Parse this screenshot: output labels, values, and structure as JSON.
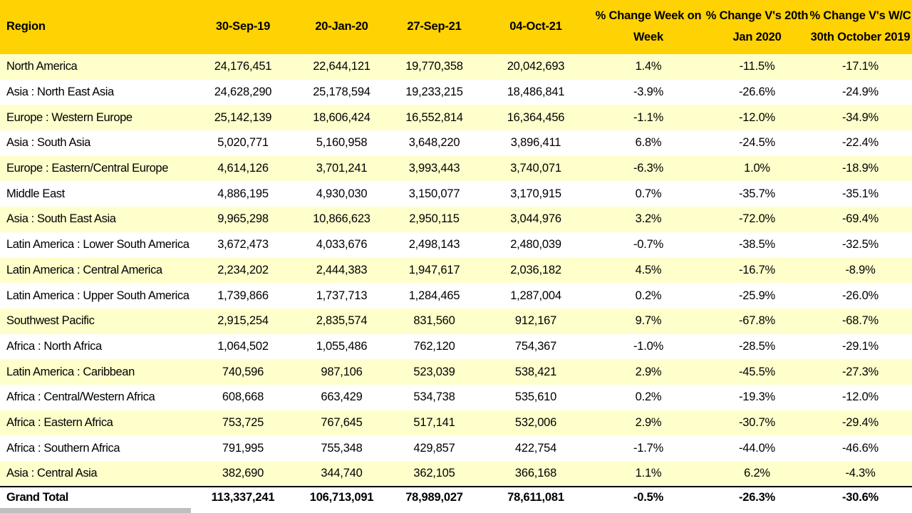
{
  "colors": {
    "header_bg": "#FFD203",
    "stripe_row_bg": "#FFFFCC",
    "plain_row_bg": "#FFFFFF",
    "text": "#000000",
    "grand_total_border": "#000000",
    "edge_shadow": "#BFBFBF"
  },
  "table": {
    "columns": [
      {
        "label": "Region"
      },
      {
        "label": "30-Sep-19"
      },
      {
        "label": "20-Jan-20"
      },
      {
        "label": "27-Sep-21"
      },
      {
        "label": "04-Oct-21"
      },
      {
        "label": "% Change Week on Week",
        "line1": "% Change Week on",
        "line2": "Week"
      },
      {
        "label": "% Change V's 20th Jan 2020",
        "line1": "% Change V's 20th",
        "line2": "Jan 2020"
      },
      {
        "label": "% Change V's W/C 30th October 2019",
        "line1": "% Change V's W/C",
        "line2": "30th October 2019"
      }
    ],
    "rows": [
      [
        "North America",
        "24,176,451",
        "22,644,121",
        "19,770,358",
        "20,042,693",
        "1.4%",
        "-11.5%",
        "-17.1%"
      ],
      [
        "Asia : North East Asia",
        "24,628,290",
        "25,178,594",
        "19,233,215",
        "18,486,841",
        "-3.9%",
        "-26.6%",
        "-24.9%"
      ],
      [
        "Europe : Western Europe",
        "25,142,139",
        "18,606,424",
        "16,552,814",
        "16,364,456",
        "-1.1%",
        "-12.0%",
        "-34.9%"
      ],
      [
        "Asia : South Asia",
        "5,020,771",
        "5,160,958",
        "3,648,220",
        "3,896,411",
        "6.8%",
        "-24.5%",
        "-22.4%"
      ],
      [
        "Europe : Eastern/Central Europe",
        "4,614,126",
        "3,701,241",
        "3,993,443",
        "3,740,071",
        "-6.3%",
        "1.0%",
        "-18.9%"
      ],
      [
        "Middle East",
        "4,886,195",
        "4,930,030",
        "3,150,077",
        "3,170,915",
        "0.7%",
        "-35.7%",
        "-35.1%"
      ],
      [
        "Asia : South East Asia",
        "9,965,298",
        "10,866,623",
        "2,950,115",
        "3,044,976",
        "3.2%",
        "-72.0%",
        "-69.4%"
      ],
      [
        "Latin America : Lower South America",
        "3,672,473",
        "4,033,676",
        "2,498,143",
        "2,480,039",
        "-0.7%",
        "-38.5%",
        "-32.5%"
      ],
      [
        "Latin America : Central America",
        "2,234,202",
        "2,444,383",
        "1,947,617",
        "2,036,182",
        "4.5%",
        "-16.7%",
        "-8.9%"
      ],
      [
        "Latin America : Upper South America",
        "1,739,866",
        "1,737,713",
        "1,284,465",
        "1,287,004",
        "0.2%",
        "-25.9%",
        "-26.0%"
      ],
      [
        "Southwest Pacific",
        "2,915,254",
        "2,835,574",
        "831,560",
        "912,167",
        "9.7%",
        "-67.8%",
        "-68.7%"
      ],
      [
        "Africa : North Africa",
        "1,064,502",
        "1,055,486",
        "762,120",
        "754,367",
        "-1.0%",
        "-28.5%",
        "-29.1%"
      ],
      [
        "Latin America : Caribbean",
        "740,596",
        "987,106",
        "523,039",
        "538,421",
        "2.9%",
        "-45.5%",
        "-27.3%"
      ],
      [
        "Africa : Central/Western Africa",
        "608,668",
        "663,429",
        "534,738",
        "535,610",
        "0.2%",
        "-19.3%",
        "-12.0%"
      ],
      [
        "Africa : Eastern Africa",
        "753,725",
        "767,645",
        "517,141",
        "532,006",
        "2.9%",
        "-30.7%",
        "-29.4%"
      ],
      [
        "Africa : Southern Africa",
        "791,995",
        "755,348",
        "429,857",
        "422,754",
        "-1.7%",
        "-44.0%",
        "-46.6%"
      ],
      [
        "Asia : Central Asia",
        "382,690",
        "344,740",
        "362,105",
        "366,168",
        "1.1%",
        "6.2%",
        "-4.3%"
      ]
    ],
    "grand_total": [
      "Grand Total",
      "113,337,241",
      "106,713,091",
      "78,989,027",
      "78,611,081",
      "-0.5%",
      "-26.3%",
      "-30.6%"
    ]
  },
  "chart_data": {
    "type": "table",
    "title": "",
    "columns": [
      "Region",
      "30-Sep-19",
      "20-Jan-20",
      "27-Sep-21",
      "04-Oct-21",
      "% Change Week on Week",
      "% Change V's 20th Jan 2020",
      "% Change V's W/C 30th October 2019"
    ],
    "rows": [
      [
        "North America",
        24176451,
        22644121,
        19770358,
        20042693,
        1.4,
        -11.5,
        -17.1
      ],
      [
        "Asia : North East Asia",
        24628290,
        25178594,
        19233215,
        18486841,
        -3.9,
        -26.6,
        -24.9
      ],
      [
        "Europe : Western Europe",
        25142139,
        18606424,
        16552814,
        16364456,
        -1.1,
        -12.0,
        -34.9
      ],
      [
        "Asia : South Asia",
        5020771,
        5160958,
        3648220,
        3896411,
        6.8,
        -24.5,
        -22.4
      ],
      [
        "Europe : Eastern/Central Europe",
        4614126,
        3701241,
        3993443,
        3740071,
        -6.3,
        1.0,
        -18.9
      ],
      [
        "Middle East",
        4886195,
        4930030,
        3150077,
        3170915,
        0.7,
        -35.7,
        -35.1
      ],
      [
        "Asia : South East Asia",
        9965298,
        10866623,
        2950115,
        3044976,
        3.2,
        -72.0,
        -69.4
      ],
      [
        "Latin America : Lower South America",
        3672473,
        4033676,
        2498143,
        2480039,
        -0.7,
        -38.5,
        -32.5
      ],
      [
        "Latin America : Central America",
        2234202,
        2444383,
        1947617,
        2036182,
        4.5,
        -16.7,
        -8.9
      ],
      [
        "Latin America : Upper South America",
        1739866,
        1737713,
        1284465,
        1287004,
        0.2,
        -25.9,
        -26.0
      ],
      [
        "Southwest Pacific",
        2915254,
        2835574,
        831560,
        912167,
        9.7,
        -67.8,
        -68.7
      ],
      [
        "Africa : North Africa",
        1064502,
        1055486,
        762120,
        754367,
        -1.0,
        -28.5,
        -29.1
      ],
      [
        "Latin America : Caribbean",
        740596,
        987106,
        523039,
        538421,
        2.9,
        -45.5,
        -27.3
      ],
      [
        "Africa : Central/Western Africa",
        608668,
        663429,
        534738,
        535610,
        0.2,
        -19.3,
        -12.0
      ],
      [
        "Africa : Eastern Africa",
        753725,
        767645,
        517141,
        532006,
        2.9,
        -30.7,
        -29.4
      ],
      [
        "Africa : Southern Africa",
        791995,
        755348,
        429857,
        422754,
        -1.7,
        -44.0,
        -46.6
      ],
      [
        "Asia : Central Asia",
        382690,
        344740,
        362105,
        366168,
        1.1,
        6.2,
        -4.3
      ]
    ],
    "grand_total_row": [
      "Grand Total",
      113337241,
      106713091,
      78989027,
      78611081,
      -0.5,
      -26.3,
      -30.6
    ],
    "layout": {
      "striped": true,
      "stripe_pattern": "odd-rows-pale-yellow",
      "header_style": "gold-bold",
      "grid": false
    }
  }
}
